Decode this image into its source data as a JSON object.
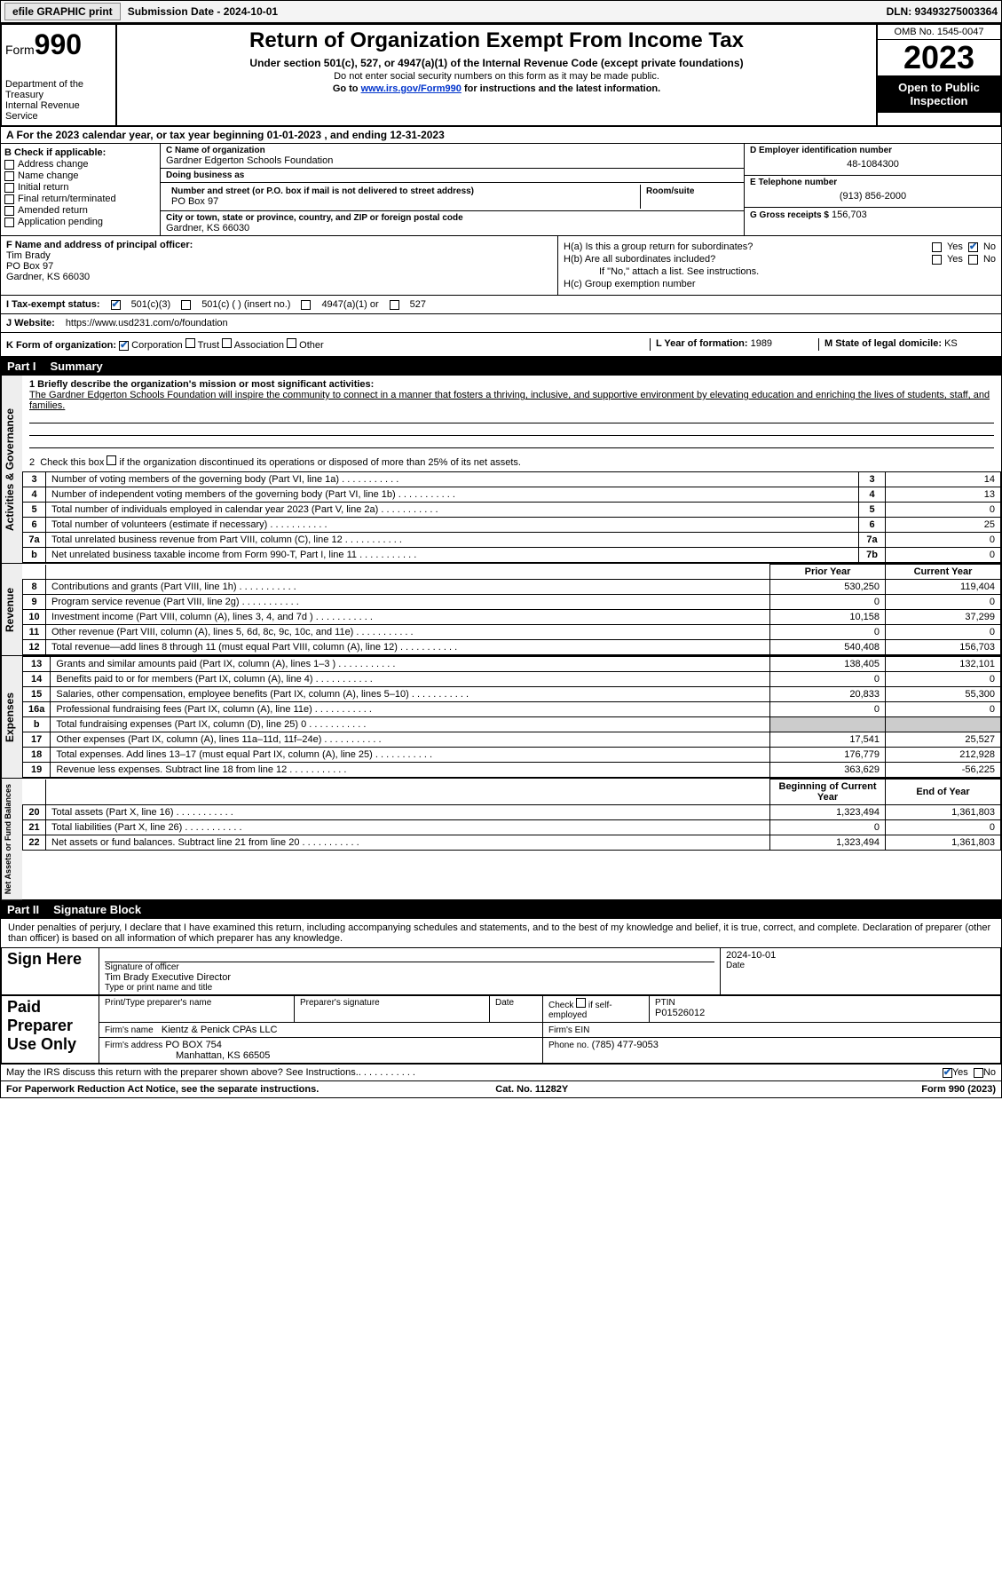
{
  "topbar": {
    "efile": "efile GRAPHIC print",
    "submission": "Submission Date - 2024-10-01",
    "dln": "DLN: 93493275003364"
  },
  "header": {
    "form": "Form",
    "formno": "990",
    "title": "Return of Organization Exempt From Income Tax",
    "sub": "Under section 501(c), 527, or 4947(a)(1) of the Internal Revenue Code (except private foundations)",
    "note1": "Do not enter social security numbers on this form as it may be made public.",
    "note2_pre": "Go to ",
    "note2_link": "www.irs.gov/Form990",
    "note2_post": " for instructions and the latest information.",
    "dept": "Department of the Treasury",
    "irs": "Internal Revenue Service",
    "omb": "OMB No. 1545-0047",
    "year": "2023",
    "otp": "Open to Public Inspection"
  },
  "row_a": "A For the 2023 calendar year, or tax year beginning 01-01-2023   , and ending 12-31-2023",
  "box_b": {
    "title": "B Check if applicable:",
    "items": [
      "Address change",
      "Name change",
      "Initial return",
      "Final return/terminated",
      "Amended return",
      "Application pending"
    ]
  },
  "box_c": {
    "name_lbl": "C Name of organization",
    "name": "Gardner Edgerton Schools Foundation",
    "dba_lbl": "Doing business as",
    "dba": "",
    "addr_lbl": "Number and street (or P.O. box if mail is not delivered to street address)",
    "room_lbl": "Room/suite",
    "addr": "PO Box 97",
    "city_lbl": "City or town, state or province, country, and ZIP or foreign postal code",
    "city": "Gardner, KS  66030"
  },
  "box_d": {
    "ein_lbl": "D Employer identification number",
    "ein": "48-1084300",
    "tel_lbl": "E Telephone number",
    "tel": "(913) 856-2000",
    "gross_lbl": "G Gross receipts $",
    "gross": "156,703"
  },
  "box_f": {
    "lbl": "F Name and address of principal officer:",
    "name": "Tim Brady",
    "addr1": "PO Box 97",
    "addr2": "Gardner, KS  66030"
  },
  "box_h": {
    "ha": "H(a)  Is this a group return for subordinates?",
    "hb": "H(b)  Are all subordinates included?",
    "hb_note": "If \"No,\" attach a list. See instructions.",
    "hc": "H(c)  Group exemption number",
    "yes": "Yes",
    "no": "No"
  },
  "line_i": {
    "lbl": "I   Tax-exempt status:",
    "o1": "501(c)(3)",
    "o2": "501(c) (  ) (insert no.)",
    "o3": "4947(a)(1) or",
    "o4": "527"
  },
  "line_j": {
    "lbl": "J   Website:",
    "url": "https://www.usd231.com/o/foundation"
  },
  "line_k": {
    "lbl": "K Form of organization:",
    "o1": "Corporation",
    "o2": "Trust",
    "o3": "Association",
    "o4": "Other",
    "l_lbl": "L Year of formation:",
    "l_val": "1989",
    "m_lbl": "M State of legal domicile:",
    "m_val": "KS"
  },
  "part1": {
    "hdr_pn": "Part I",
    "hdr_title": "Summary",
    "vtab1": "Activities & Governance",
    "vtab2": "Revenue",
    "vtab3": "Expenses",
    "vtab4": "Net Assets or Fund Balances",
    "line1_lbl": "1   Briefly describe the organization's mission or most significant activities:",
    "line1_txt": "The Gardner Edgerton Schools Foundation will inspire the community to connect in a manner that fosters a thriving, inclusive, and supportive environment by elevating education and enriching the lives of students, staff, and families.",
    "line2": "2   Check this box       if the organization discontinued its operations or disposed of more than 25% of its net assets.",
    "lines_gov": [
      {
        "n": "3",
        "d": "Number of voting members of the governing body (Part VI, line 1a)",
        "box": "3",
        "v": "14"
      },
      {
        "n": "4",
        "d": "Number of independent voting members of the governing body (Part VI, line 1b)",
        "box": "4",
        "v": "13"
      },
      {
        "n": "5",
        "d": "Total number of individuals employed in calendar year 2023 (Part V, line 2a)",
        "box": "5",
        "v": "0"
      },
      {
        "n": "6",
        "d": "Total number of volunteers (estimate if necessary)",
        "box": "6",
        "v": "25"
      },
      {
        "n": "7a",
        "d": "Total unrelated business revenue from Part VIII, column (C), line 12",
        "box": "7a",
        "v": "0"
      },
      {
        "n": "b",
        "d": "Net unrelated business taxable income from Form 990-T, Part I, line 11",
        "box": "7b",
        "v": "0"
      }
    ],
    "col_prior": "Prior Year",
    "col_curr": "Current Year",
    "lines_rev": [
      {
        "n": "8",
        "d": "Contributions and grants (Part VIII, line 1h)",
        "p": "530,250",
        "c": "119,404"
      },
      {
        "n": "9",
        "d": "Program service revenue (Part VIII, line 2g)",
        "p": "0",
        "c": "0"
      },
      {
        "n": "10",
        "d": "Investment income (Part VIII, column (A), lines 3, 4, and 7d )",
        "p": "10,158",
        "c": "37,299"
      },
      {
        "n": "11",
        "d": "Other revenue (Part VIII, column (A), lines 5, 6d, 8c, 9c, 10c, and 11e)",
        "p": "0",
        "c": "0"
      },
      {
        "n": "12",
        "d": "Total revenue—add lines 8 through 11 (must equal Part VIII, column (A), line 12)",
        "p": "540,408",
        "c": "156,703"
      }
    ],
    "lines_exp": [
      {
        "n": "13",
        "d": "Grants and similar amounts paid (Part IX, column (A), lines 1–3 )",
        "p": "138,405",
        "c": "132,101"
      },
      {
        "n": "14",
        "d": "Benefits paid to or for members (Part IX, column (A), line 4)",
        "p": "0",
        "c": "0"
      },
      {
        "n": "15",
        "d": "Salaries, other compensation, employee benefits (Part IX, column (A), lines 5–10)",
        "p": "20,833",
        "c": "55,300"
      },
      {
        "n": "16a",
        "d": "Professional fundraising fees (Part IX, column (A), line 11e)",
        "p": "0",
        "c": "0"
      },
      {
        "n": "b",
        "d": "Total fundraising expenses (Part IX, column (D), line 25) 0",
        "p": "gray",
        "c": "gray"
      },
      {
        "n": "17",
        "d": "Other expenses (Part IX, column (A), lines 11a–11d, 11f–24e)",
        "p": "17,541",
        "c": "25,527"
      },
      {
        "n": "18",
        "d": "Total expenses. Add lines 13–17 (must equal Part IX, column (A), line 25)",
        "p": "176,779",
        "c": "212,928"
      },
      {
        "n": "19",
        "d": "Revenue less expenses. Subtract line 18 from line 12",
        "p": "363,629",
        "c": "-56,225"
      }
    ],
    "col_begin": "Beginning of Current Year",
    "col_end": "End of Year",
    "lines_na": [
      {
        "n": "20",
        "d": "Total assets (Part X, line 16)",
        "p": "1,323,494",
        "c": "1,361,803"
      },
      {
        "n": "21",
        "d": "Total liabilities (Part X, line 26)",
        "p": "0",
        "c": "0"
      },
      {
        "n": "22",
        "d": "Net assets or fund balances. Subtract line 21 from line 20",
        "p": "1,323,494",
        "c": "1,361,803"
      }
    ]
  },
  "part2": {
    "hdr_pn": "Part II",
    "hdr_title": "Signature Block",
    "intro": "Under penalties of perjury, I declare that I have examined this return, including accompanying schedules and statements, and to the best of my knowledge and belief, it is true, correct, and complete. Declaration of preparer (other than officer) is based on all information of which preparer has any knowledge.",
    "sign_here": "Sign Here",
    "sig_officer": "Signature of officer",
    "sig_name": "Tim Brady  Executive Director",
    "sig_type": "Type or print name and title",
    "sig_date_lbl": "Date",
    "sig_date": "2024-10-01",
    "paid": "Paid Preparer Use Only",
    "prep_name_lbl": "Print/Type preparer's name",
    "prep_sig_lbl": "Preparer's signature",
    "date_lbl": "Date",
    "chk_lbl": "Check         if self-employed",
    "ptin_lbl": "PTIN",
    "ptin": "P01526012",
    "firm_name_lbl": "Firm's name",
    "firm_name": "Kientz & Penick CPAs LLC",
    "firm_ein_lbl": "Firm's EIN",
    "firm_addr_lbl": "Firm's address",
    "firm_addr": "PO BOX 754",
    "firm_city": "Manhattan, KS  66505",
    "firm_phone_lbl": "Phone no.",
    "firm_phone": "(785) 477-9053",
    "discuss": "May the IRS discuss this return with the preparer shown above? See Instructions.",
    "yes": "Yes",
    "no": "No"
  },
  "footer": {
    "l": "For Paperwork Reduction Act Notice, see the separate instructions.",
    "m": "Cat. No. 11282Y",
    "r": "Form 990 (2023)"
  }
}
